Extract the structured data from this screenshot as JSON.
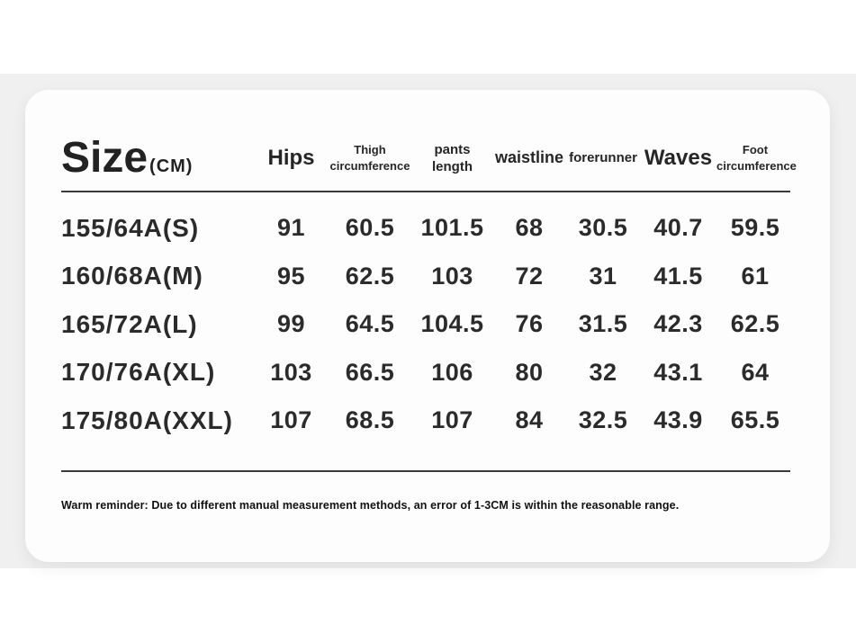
{
  "page": {
    "background": "#ffffff",
    "band_color": "#f0f0f1",
    "card_color": "#fdfdfe",
    "rule_color": "#3a3a3a",
    "text_color": "#262626"
  },
  "chart_data": {
    "type": "table",
    "title": "Size",
    "title_unit": "(CM)",
    "headers": [
      {
        "lines": [
          "Hips"
        ]
      },
      {
        "lines": [
          "Thigh",
          "circumference"
        ]
      },
      {
        "lines": [
          "pants length"
        ]
      },
      {
        "lines": [
          "waistline"
        ]
      },
      {
        "lines": [
          "forerunner"
        ]
      },
      {
        "lines": [
          "Waves"
        ]
      },
      {
        "lines": [
          "Foot",
          "circumference"
        ]
      }
    ],
    "rows": [
      {
        "cells": [
          "155/64A(S)",
          "91",
          "60.5",
          "101.5",
          "68",
          "30.5",
          "40.7",
          "59.5"
        ]
      },
      {
        "cells": [
          "160/68A(M)",
          "95",
          "62.5",
          "103",
          "72",
          "31",
          "41.5",
          "61"
        ]
      },
      {
        "cells": [
          "165/72A(L)",
          "99",
          "64.5",
          "104.5",
          "76",
          "31.5",
          "42.3",
          "62.5"
        ]
      },
      {
        "cells": [
          "170/76A(XL)",
          "103",
          "66.5",
          "106",
          "80",
          "32",
          "43.1",
          "64"
        ]
      },
      {
        "cells": [
          "175/80A(XXL)",
          "107",
          "68.5",
          "107",
          "84",
          "32.5",
          "43.9",
          "65.5"
        ]
      }
    ],
    "note": "Warm reminder: Due to different manual measurement methods, an error of 1-3CM is within the reasonable range."
  }
}
